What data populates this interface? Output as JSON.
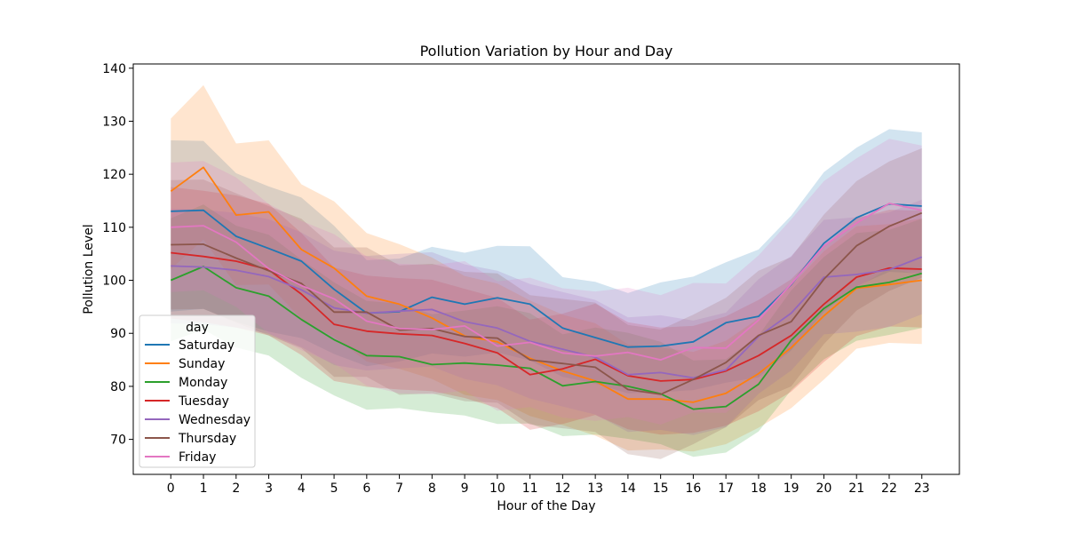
{
  "chart_data": {
    "type": "line",
    "title": "Pollution Variation by Hour and Day",
    "xlabel": "Hour of the Day",
    "ylabel": "Pollution Level",
    "x": [
      0,
      1,
      2,
      3,
      4,
      5,
      6,
      7,
      8,
      9,
      10,
      11,
      12,
      13,
      14,
      15,
      16,
      17,
      18,
      19,
      20,
      21,
      22,
      23
    ],
    "xlim": [
      -1.15,
      24.15
    ],
    "ylim": [
      63.4,
      140.8
    ],
    "yticks": [
      70,
      80,
      90,
      100,
      110,
      120,
      130,
      140
    ],
    "grid": false,
    "legend": {
      "title": "day",
      "placement": "lower-left"
    },
    "series": [
      {
        "name": "Saturday",
        "color": "#1f77b4",
        "values": [
          113,
          113.2,
          108.3,
          106,
          103.6,
          98.3,
          93.8,
          94.1,
          96.8,
          95.5,
          96.7,
          95.5,
          91,
          89.2,
          87.4,
          87.6,
          88.4,
          92,
          93.2,
          99.2,
          107,
          111.8,
          114.4,
          114
        ],
        "lower": [
          94.1,
          94.6,
          92.2,
          90.3,
          89.1,
          86.1,
          83.8,
          84.7,
          86.2,
          85.6,
          86.4,
          84.9,
          81.8,
          80.5,
          78.7,
          78.9,
          79.3,
          80.7,
          81.7,
          86.8,
          94.1,
          98.9,
          101.6,
          101.3
        ],
        "upper": [
          126.4,
          126.3,
          120.2,
          117.7,
          115.6,
          110.3,
          103.8,
          104.1,
          106.3,
          105.2,
          106.5,
          106.4,
          100.6,
          99.7,
          97.6,
          99.6,
          100.7,
          103.4,
          105.8,
          112.2,
          120.4,
          125.0,
          128.5,
          127.9
        ]
      },
      {
        "name": "Sunday",
        "color": "#ff7f0e",
        "values": [
          116.8,
          121.3,
          112.3,
          112.9,
          105.8,
          102.3,
          97,
          95.5,
          92.9,
          89.5,
          88.4,
          85.3,
          82.9,
          81,
          77.6,
          77.6,
          77,
          78.7,
          82.4,
          87.3,
          93.3,
          98.5,
          99.2,
          100
        ],
        "lower": [
          102.1,
          107.7,
          99.1,
          99.2,
          92.7,
          89.3,
          84.7,
          83.3,
          81.4,
          78.4,
          77.4,
          74.4,
          72.7,
          70.7,
          67.9,
          68.1,
          67.7,
          69.1,
          72.2,
          75.9,
          81.3,
          87.1,
          88.2,
          88
        ],
        "upper": [
          130.5,
          136.8,
          125.8,
          126.4,
          118.1,
          114.9,
          108.9,
          106.8,
          104.3,
          100.8,
          99.4,
          96.2,
          93.5,
          91.9,
          87.9,
          87.3,
          86.5,
          88.6,
          92.8,
          99.0,
          105.5,
          110.2,
          110.6,
          111.7
        ]
      },
      {
        "name": "Monday",
        "color": "#2ca02c",
        "values": [
          100,
          102.6,
          98.6,
          97,
          92.6,
          88.8,
          85.8,
          85.6,
          84.1,
          84.4,
          84,
          83.4,
          80.1,
          80.9,
          80,
          78.6,
          75.7,
          76.2,
          80.4,
          88.7,
          94.7,
          98.7,
          99.6,
          101.3
        ],
        "lower": [
          88.5,
          90.7,
          87.3,
          85.8,
          81.6,
          78.3,
          75.6,
          75.9,
          75.1,
          74.5,
          72.9,
          73,
          70.6,
          70.9,
          70.1,
          69.1,
          66.7,
          67.5,
          71.5,
          79.3,
          85.1,
          88.6,
          89.7,
          91
        ],
        "upper": [
          111.7,
          114.3,
          110.3,
          108.6,
          103.9,
          99.6,
          96.1,
          95.6,
          93.6,
          94.3,
          95.1,
          93.8,
          89.8,
          91.1,
          90.1,
          88.4,
          84.9,
          85.1,
          89.6,
          98.1,
          104.4,
          108.9,
          109.5,
          111.6
        ]
      },
      {
        "name": "Tuesday",
        "color": "#d62728",
        "values": [
          105.2,
          104.5,
          103.6,
          102,
          97.4,
          91.7,
          90.4,
          89.9,
          89.6,
          88.1,
          86.3,
          82.2,
          83.3,
          85.1,
          82,
          81,
          81.3,
          82.9,
          85.8,
          89.6,
          95.5,
          100.6,
          102.3,
          102.1
        ],
        "lower": [
          92.8,
          92.1,
          91.1,
          89.6,
          85.9,
          81,
          79.9,
          79.4,
          79.1,
          77.8,
          75.9,
          71.8,
          72.9,
          74.6,
          71.9,
          70.9,
          71.2,
          72.6,
          75.3,
          79,
          84.6,
          89.5,
          91.3,
          91.1
        ],
        "upper": [
          117.6,
          116.9,
          116,
          114.4,
          108.9,
          102.4,
          100.9,
          100.4,
          100.1,
          98.4,
          96.7,
          92.6,
          93.7,
          95.6,
          92.1,
          91.1,
          91.4,
          93.2,
          96.3,
          100.2,
          106.4,
          111.7,
          113.3,
          113.1
        ]
      },
      {
        "name": "Wednesday",
        "color": "#9467bd",
        "values": [
          102.7,
          102.5,
          101.9,
          100.7,
          98.2,
          94.8,
          93.8,
          94.2,
          94.5,
          92.2,
          91,
          88.5,
          87,
          85.5,
          82.2,
          82.6,
          81.6,
          83.1,
          89.4,
          93.8,
          100.6,
          101.1,
          102,
          104.4
        ],
        "lower": [
          91.9,
          91.7,
          91.1,
          89.9,
          87.4,
          84,
          83,
          83.4,
          83.7,
          81.4,
          80.2,
          77.7,
          76.2,
          74.7,
          71.4,
          71.8,
          70.8,
          72.3,
          78.6,
          83,
          89.8,
          90.3,
          91.2,
          93.6
        ],
        "upper": [
          113.5,
          113.3,
          112.7,
          111.5,
          109,
          105.6,
          104.6,
          105,
          105.3,
          103,
          101.8,
          99.3,
          97.8,
          96.3,
          93,
          93.4,
          92.4,
          93.9,
          100.2,
          104.6,
          111.4,
          111.9,
          112.8,
          115.2
        ]
      },
      {
        "name": "Thursday",
        "color": "#8c564b",
        "values": [
          106.7,
          106.8,
          104.2,
          101.8,
          99.4,
          94,
          94,
          90.6,
          90.9,
          89.4,
          89.1,
          85,
          84.3,
          83.6,
          79.4,
          78.5,
          81.3,
          84.5,
          89.6,
          92.2,
          100.2,
          106.5,
          110.2,
          112.7
        ],
        "lower": [
          94.5,
          94.6,
          92,
          89.6,
          87.2,
          81.8,
          81.8,
          78.4,
          78.7,
          77.2,
          76.9,
          72.8,
          72.1,
          71.4,
          67.2,
          66.3,
          69.1,
          72.3,
          77.4,
          80,
          88,
          94.3,
          98,
          100.5
        ],
        "upper": [
          118.9,
          119,
          116.4,
          114,
          111.6,
          106.2,
          106.2,
          102.8,
          103.1,
          101.6,
          101.3,
          97.2,
          96.5,
          95.8,
          91.6,
          90.7,
          93.5,
          96.7,
          101.8,
          104.4,
          112.4,
          118.7,
          122.4,
          124.9
        ]
      },
      {
        "name": "Friday",
        "color": "#e377c2",
        "values": [
          110,
          110.3,
          107.2,
          102.2,
          99,
          96.5,
          92.3,
          90.9,
          90.7,
          91.4,
          87.6,
          88.3,
          86.3,
          85.7,
          86.4,
          85,
          87.3,
          87.2,
          92.5,
          99.3,
          106.5,
          110.8,
          114.5,
          113.2
        ],
        "lower": [
          97.8,
          98.1,
          95,
          90,
          86.8,
          84.3,
          80.1,
          78.7,
          78.5,
          79.2,
          75.4,
          76.1,
          74.1,
          73.5,
          74.2,
          72.8,
          75.1,
          75,
          80.3,
          87.1,
          94.3,
          98.6,
          102.3,
          101
        ],
        "upper": [
          122.2,
          122.5,
          119.4,
          114.4,
          111.2,
          108.7,
          104.5,
          103.1,
          102.9,
          103.6,
          99.8,
          100.5,
          98.5,
          97.9,
          98.6,
          97.2,
          99.5,
          99.4,
          104.7,
          111.5,
          118.7,
          123,
          126.7,
          125.4
        ]
      }
    ]
  }
}
